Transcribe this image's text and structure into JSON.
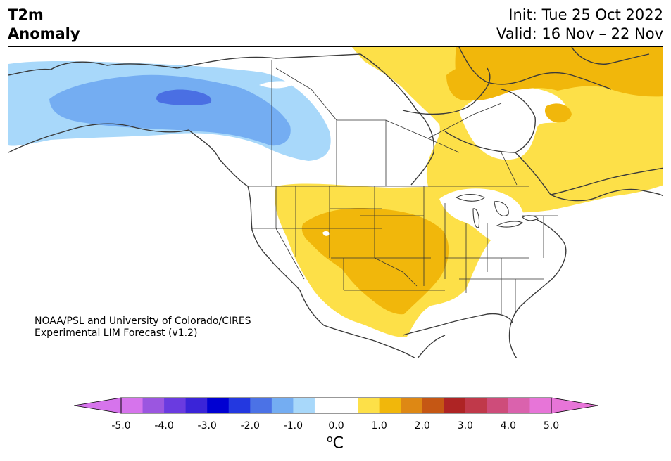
{
  "header": {
    "title_line1": "T2m",
    "title_line2": "Anomaly",
    "init": "Init: Tue 25 Oct 2022",
    "valid": "Valid: 16 Nov – 22 Nov"
  },
  "map": {
    "region": "North America",
    "credit_line1": "NOAA/PSL and University of Colorado/CIRES",
    "credit_line2": "Experimental LIM Forecast (v1.2)",
    "anomaly_regions": [
      {
        "name": "Alaska / NW Canada cold anomaly",
        "level": "-1.0",
        "color": "#a8d8fa"
      },
      {
        "name": "Alaska / NW Canada cold anomaly core",
        "level": "-1.5",
        "color": "#74adf2"
      },
      {
        "name": "Yukon cold anomaly maximum",
        "level": "-2.0",
        "color": "#4a6fe3"
      },
      {
        "name": "Central US / SW warm anomaly",
        "level": "+1.0",
        "color": "#fde048"
      },
      {
        "name": "Southern Plains warm anomaly core",
        "level": "+1.5",
        "color": "#f1b70b"
      },
      {
        "name": "Eastern Canada / Greenland warm anomaly",
        "level": "+1.0",
        "color": "#fde048"
      },
      {
        "name": "Baffin / Greenland warm anomaly core",
        "level": "+1.5",
        "color": "#f1b70b"
      }
    ]
  },
  "colorbar": {
    "unit": "C",
    "unit_prefix": "o",
    "tick_labels": [
      "-5.0",
      "-4.0",
      "-3.0",
      "-2.0",
      "-1.0",
      "0.0",
      "1.0",
      "2.0",
      "3.0",
      "4.0",
      "5.0"
    ],
    "colors": [
      "#d674ec",
      "#9b56e0",
      "#6a3be0",
      "#3a24d8",
      "#0000d2",
      "#2338e0",
      "#4b72e6",
      "#74adf2",
      "#a8d8fa",
      "#ffffff",
      "#ffffff",
      "#fde048",
      "#f1b70b",
      "#de8814",
      "#c55714",
      "#ae2424",
      "#c0394a",
      "#ce4c7a",
      "#da62ad",
      "#e775d8"
    ],
    "under_color": "#d674ec",
    "over_color": "#e775d8"
  }
}
